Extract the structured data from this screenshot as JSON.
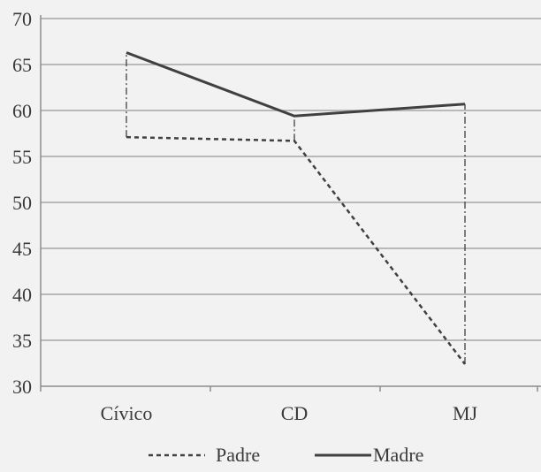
{
  "chart_data": {
    "type": "line",
    "title": "",
    "xlabel": "",
    "ylabel": "",
    "categories": [
      "Cívico",
      "CD",
      "MJ"
    ],
    "ylim": [
      30,
      70
    ],
    "yticks": [
      30,
      35,
      40,
      45,
      50,
      55,
      60,
      65,
      70
    ],
    "grid": true,
    "legend_position": "bottom",
    "series": [
      {
        "name": "Padre",
        "values": [
          57.1,
          56.7,
          32.4
        ],
        "style": "dashed",
        "color": "#404040"
      },
      {
        "name": "Madre",
        "values": [
          66.3,
          59.4,
          60.7
        ],
        "style": "solid",
        "color": "#404040"
      }
    ],
    "drop_lines": true,
    "drop_line_style": "dash-dot",
    "colors": {
      "background": "#f2f2f2",
      "grid": "#a6a6a6",
      "axis": "#8c8c8c",
      "text": "#3a3a3a",
      "line": "#404040"
    }
  }
}
